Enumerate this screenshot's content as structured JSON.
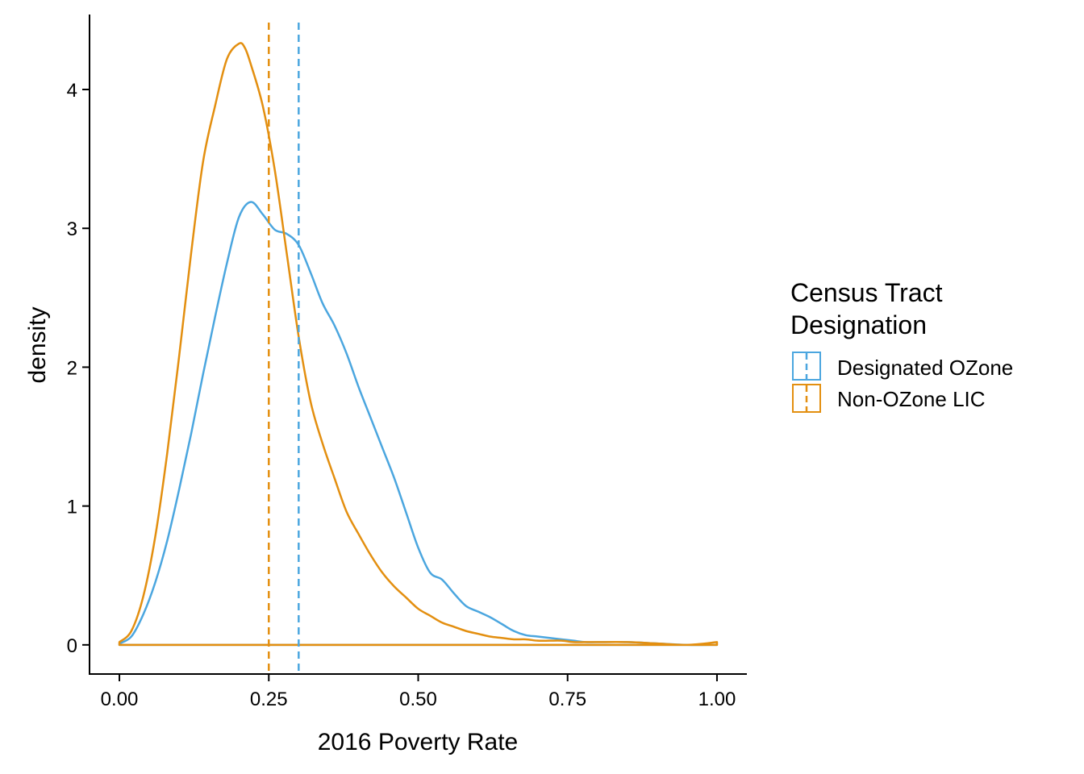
{
  "colors": {
    "designated": "#4BA6DF",
    "non_ozone": "#E38F10",
    "axis": "#000000",
    "background": "#ffffff"
  },
  "legend": {
    "title_line1": "Census Tract",
    "title_line2": "Designation",
    "items": [
      {
        "label": "Designated OZone",
        "color": "#4BA6DF"
      },
      {
        "label": "Non-OZone LIC",
        "color": "#E38F10"
      }
    ]
  },
  "chart_data": {
    "type": "line",
    "subtype": "density",
    "xlabel": "2016 Poverty Rate",
    "ylabel": "density",
    "xlim": [
      -0.05,
      1.05
    ],
    "ylim": [
      -0.21,
      4.54
    ],
    "x_ticks": [
      0,
      0.25,
      0.5,
      0.75,
      1
    ],
    "x_tick_labels": [
      "0.00",
      "0.25",
      "0.50",
      "0.75",
      "1.00"
    ],
    "y_ticks": [
      0,
      1,
      2,
      3,
      4
    ],
    "y_tick_labels": [
      "0",
      "1",
      "2",
      "3",
      "4"
    ],
    "grid": false,
    "legend_position": "right",
    "series": [
      {
        "name": "Designated OZone",
        "color": "#4BA6DF",
        "mean": 0.3,
        "x": [
          0,
          0.02,
          0.04,
          0.06,
          0.08,
          0.1,
          0.12,
          0.14,
          0.16,
          0.18,
          0.2,
          0.22,
          0.24,
          0.26,
          0.28,
          0.3,
          0.32,
          0.34,
          0.36,
          0.38,
          0.4,
          0.42,
          0.44,
          0.46,
          0.48,
          0.5,
          0.52,
          0.54,
          0.56,
          0.58,
          0.6,
          0.62,
          0.64,
          0.66,
          0.68,
          0.7,
          0.72,
          0.74,
          0.76,
          0.78,
          0.8,
          0.85,
          0.9,
          0.95,
          1.0
        ],
        "y": [
          0.01,
          0.06,
          0.22,
          0.45,
          0.75,
          1.12,
          1.52,
          1.95,
          2.36,
          2.75,
          3.08,
          3.19,
          3.1,
          2.99,
          2.96,
          2.88,
          2.68,
          2.46,
          2.3,
          2.1,
          1.86,
          1.64,
          1.42,
          1.2,
          0.95,
          0.7,
          0.52,
          0.47,
          0.37,
          0.28,
          0.24,
          0.2,
          0.15,
          0.1,
          0.07,
          0.06,
          0.05,
          0.04,
          0.03,
          0.02,
          0.02,
          0.02,
          0.01,
          0.0,
          0.0
        ]
      },
      {
        "name": "Non-OZone LIC",
        "color": "#E38F10",
        "mean": 0.25,
        "x": [
          0,
          0.02,
          0.04,
          0.06,
          0.08,
          0.1,
          0.12,
          0.14,
          0.16,
          0.18,
          0.2,
          0.21,
          0.22,
          0.24,
          0.26,
          0.28,
          0.3,
          0.32,
          0.34,
          0.36,
          0.38,
          0.4,
          0.42,
          0.44,
          0.46,
          0.48,
          0.5,
          0.52,
          0.54,
          0.56,
          0.58,
          0.6,
          0.62,
          0.64,
          0.66,
          0.68,
          0.7,
          0.72,
          0.74,
          0.76,
          0.78,
          0.8,
          0.85,
          0.9,
          0.95,
          1.0
        ],
        "y": [
          0.02,
          0.1,
          0.35,
          0.78,
          1.38,
          2.08,
          2.82,
          3.48,
          3.88,
          4.22,
          4.33,
          4.3,
          4.18,
          3.88,
          3.42,
          2.82,
          2.22,
          1.75,
          1.45,
          1.2,
          0.96,
          0.8,
          0.65,
          0.52,
          0.42,
          0.34,
          0.26,
          0.21,
          0.16,
          0.13,
          0.1,
          0.08,
          0.06,
          0.05,
          0.04,
          0.04,
          0.03,
          0.03,
          0.03,
          0.02,
          0.02,
          0.02,
          0.02,
          0.01,
          0.0,
          0.02
        ]
      }
    ]
  }
}
